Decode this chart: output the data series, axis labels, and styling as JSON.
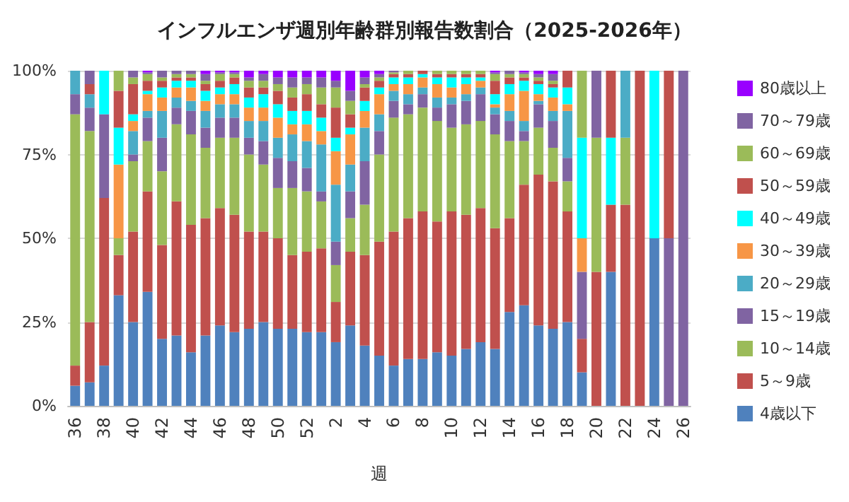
{
  "chart_data": {
    "type": "bar",
    "stacked": true,
    "title": "インフルエンザ週別年齢群別報告数割合（2025-2026年）",
    "xlabel": "週",
    "categories": [
      "36",
      null,
      "38",
      null,
      "40",
      null,
      "42",
      null,
      "44",
      null,
      "46",
      null,
      "48",
      null,
      "50",
      null,
      "52",
      null,
      "2",
      null,
      "4",
      null,
      "6",
      null,
      "8",
      null,
      "10",
      null,
      "12",
      null,
      "14",
      null,
      "16",
      null,
      "18",
      null,
      "20",
      null,
      "22",
      null,
      "24",
      null,
      "26"
    ],
    "ylim": [
      0,
      100
    ],
    "yticks": [
      {
        "value": 0,
        "label": "0%"
      },
      {
        "value": 25,
        "label": "25%"
      },
      {
        "value": 50,
        "label": "50%"
      },
      {
        "value": 75,
        "label": "75%"
      },
      {
        "value": 100,
        "label": "100%"
      }
    ],
    "grid": "y",
    "legend": "right",
    "series": [
      {
        "name": "4歳以下",
        "color": "#4f81bd",
        "values": [
          6,
          7,
          12,
          33,
          25,
          34,
          20,
          21,
          16,
          21,
          24,
          22,
          23,
          25,
          23,
          23,
          22,
          22,
          19,
          24,
          18,
          15,
          12,
          14,
          14,
          16,
          15,
          17,
          19,
          17,
          28,
          30,
          24,
          23,
          25,
          10,
          0,
          40,
          0,
          0,
          50,
          0,
          0
        ]
      },
      {
        "name": "5～9歳",
        "color": "#c0504d",
        "values": [
          6,
          18,
          50,
          12,
          27,
          30,
          28,
          40,
          38,
          35,
          35,
          35,
          29,
          27,
          27,
          22,
          24,
          25,
          12,
          22,
          27,
          34,
          40,
          42,
          44,
          39,
          43,
          40,
          40,
          36,
          28,
          36,
          45,
          44,
          33,
          10,
          40,
          20,
          60,
          100,
          0,
          0,
          0
        ]
      },
      {
        "name": "10～14歳",
        "color": "#9bbb59",
        "values": [
          75,
          57,
          0,
          5,
          21,
          15,
          22,
          23,
          27,
          21,
          21,
          23,
          23,
          20,
          15,
          20,
          18,
          14,
          11,
          10,
          15,
          26,
          34,
          31,
          31,
          30,
          25,
          27,
          26,
          28,
          23,
          13,
          14,
          10,
          9,
          0,
          40,
          0,
          20,
          0,
          0,
          0,
          0
        ]
      },
      {
        "name": "15～19歳",
        "color": "#8064a2",
        "values": [
          6,
          7,
          25,
          0,
          2,
          7,
          10,
          5,
          7,
          6,
          6,
          6,
          5,
          7,
          9,
          8,
          7,
          3,
          7,
          8,
          13,
          7,
          5,
          3,
          4,
          4,
          7,
          7,
          8,
          6,
          6,
          3,
          7,
          8,
          7,
          20,
          20,
          0,
          0,
          0,
          0,
          50,
          100
        ]
      },
      {
        "name": "20～29歳",
        "color": "#4bacc6",
        "values": [
          7,
          4,
          0,
          0,
          7,
          2,
          8,
          3,
          3,
          5,
          4,
          4,
          5,
          6,
          6,
          8,
          8,
          14,
          17,
          8,
          10,
          5,
          3,
          3,
          2,
          3,
          2,
          2,
          2,
          2,
          3,
          3,
          1,
          3,
          14,
          0,
          0,
          0,
          20,
          0,
          0,
          0,
          0
        ]
      },
      {
        "name": "30～39歳",
        "color": "#f79646",
        "values": [
          0,
          0,
          0,
          22,
          3,
          5,
          4,
          3,
          4,
          3,
          3,
          3,
          4,
          4,
          6,
          3,
          5,
          4,
          10,
          9,
          5,
          6,
          2,
          3,
          3,
          4,
          3,
          3,
          2,
          1,
          5,
          9,
          2,
          4,
          2,
          10,
          0,
          0,
          0,
          0,
          0,
          0,
          0
        ]
      },
      {
        "name": "40～49歳",
        "color": "#00ffff",
        "values": [
          0,
          0,
          13,
          11,
          2,
          1,
          3,
          2,
          2,
          3,
          2,
          3,
          3,
          4,
          4,
          4,
          4,
          4,
          4,
          2,
          3,
          2,
          2,
          2,
          1,
          2,
          3,
          2,
          1,
          3,
          3,
          3,
          3,
          3,
          5,
          30,
          0,
          20,
          0,
          0,
          50,
          0,
          0
        ]
      },
      {
        "name": "50～59歳",
        "color": "#c0504d",
        "values": [
          0,
          3,
          0,
          11,
          9,
          3,
          2,
          1,
          1,
          2,
          2,
          2,
          3,
          2,
          4,
          4,
          5,
          4,
          9,
          4,
          4,
          2,
          1,
          1,
          1,
          1,
          1,
          1,
          1,
          4,
          2,
          1,
          1,
          1,
          5,
          0,
          0,
          20,
          0,
          0,
          0,
          50,
          0
        ]
      },
      {
        "name": "60～69歳",
        "color": "#9bbb59",
        "values": [
          0,
          0,
          0,
          6,
          2,
          2,
          1,
          1,
          1,
          1,
          2,
          1,
          2,
          2,
          2,
          3,
          3,
          5,
          6,
          4,
          1,
          1,
          0.5,
          1,
          0,
          1,
          1,
          1,
          1,
          2,
          1,
          1,
          1,
          1,
          0,
          20,
          0,
          0,
          0,
          0,
          0,
          0,
          0
        ]
      },
      {
        "name": "70～79歳",
        "color": "#8064a2",
        "values": [
          0,
          4,
          0,
          0,
          2,
          0.5,
          2,
          1,
          1,
          2,
          0.5,
          0.5,
          1,
          2,
          2,
          3,
          2,
          3,
          2,
          3,
          2,
          1,
          0.5,
          0,
          0,
          0,
          0,
          0,
          0,
          0.5,
          1,
          0.5,
          1,
          2,
          0,
          0,
          0,
          0,
          0,
          0,
          0,
          0,
          0
        ]
      },
      {
        "name": "80歳以上",
        "color": "#9900ff",
        "values": [
          0,
          0,
          0,
          0,
          0,
          0.5,
          0,
          0,
          0,
          1,
          0.5,
          0.5,
          2,
          1,
          2,
          2,
          2,
          2,
          3,
          6,
          2,
          1,
          0,
          0,
          0,
          0,
          0,
          0,
          0,
          0.5,
          0,
          0.5,
          1,
          1,
          0,
          0,
          0,
          0,
          0,
          0,
          0,
          0,
          0
        ]
      }
    ]
  }
}
